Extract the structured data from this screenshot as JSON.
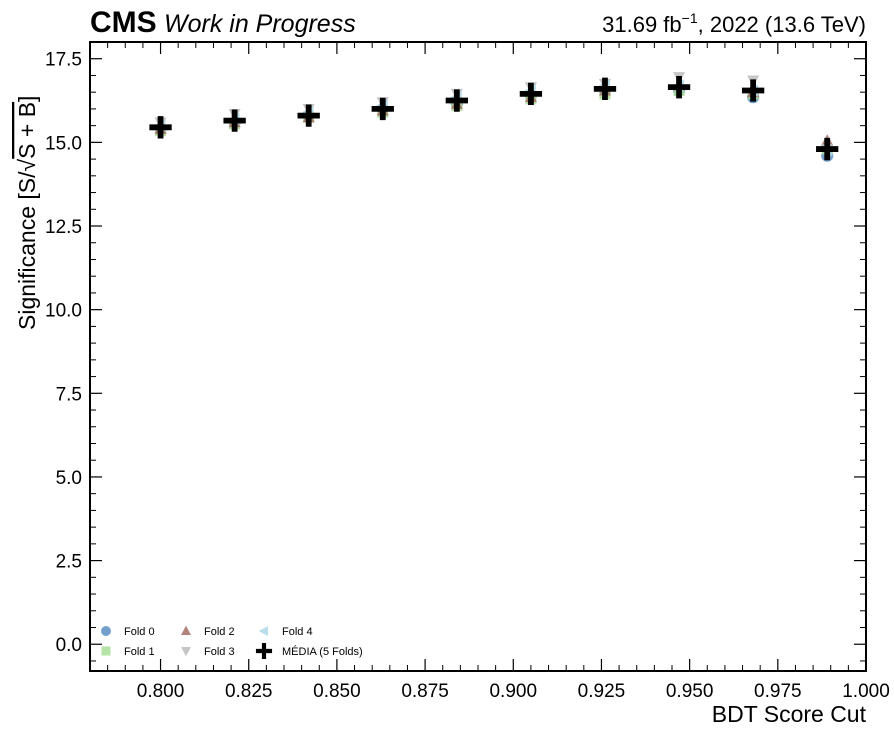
{
  "header": {
    "experiment": "CMS",
    "status": "Work in Progress",
    "lumi_value": "31.69 fb",
    "lumi_exp": "−1",
    "lumi_rest": ", 2022 (13.6 TeV)"
  },
  "chart_data": {
    "type": "scatter",
    "xlabel": "BDT Score Cut",
    "ylabel": "Significance [S/√(S + B)]",
    "ylabel_prefix": "Significance [S/√",
    "ylabel_radicand": "S + B",
    "ylabel_suffix": "]",
    "xlim": [
      0.78,
      1.0
    ],
    "ylim": [
      -0.8,
      18.0
    ],
    "xticks": [
      0.8,
      0.825,
      0.85,
      0.875,
      0.9,
      0.925,
      0.95,
      0.975,
      1.0
    ],
    "xtick_labels": [
      "0.800",
      "0.825",
      "0.850",
      "0.875",
      "0.900",
      "0.925",
      "0.950",
      "0.975",
      "1.000"
    ],
    "yticks": [
      0.0,
      2.5,
      5.0,
      7.5,
      10.0,
      12.5,
      15.0,
      17.5
    ],
    "ytick_labels": [
      "0.0",
      "2.5",
      "5.0",
      "7.5",
      "10.0",
      "12.5",
      "15.0",
      "17.5"
    ],
    "x": [
      0.8,
      0.821,
      0.842,
      0.863,
      0.884,
      0.905,
      0.926,
      0.947,
      0.968,
      0.989
    ],
    "series": [
      {
        "name": "Fold 0",
        "marker": "circle",
        "color": "#5b8fc2",
        "values": [
          15.4,
          15.6,
          15.8,
          16.0,
          16.15,
          16.4,
          16.55,
          16.55,
          16.35,
          14.6
        ]
      },
      {
        "name": "Fold 1",
        "marker": "square",
        "color": "#a8dd95",
        "values": [
          15.35,
          15.55,
          15.75,
          15.9,
          16.1,
          16.3,
          16.45,
          16.55,
          16.45,
          14.8
        ]
      },
      {
        "name": "Fold 2",
        "marker": "triangle-up",
        "color": "#a66e65",
        "values": [
          15.4,
          15.6,
          15.75,
          15.95,
          16.15,
          16.35,
          16.55,
          16.7,
          16.5,
          15.05
        ]
      },
      {
        "name": "Fold 3",
        "marker": "triangle-down",
        "color": "#bcbcbc",
        "values": [
          15.6,
          15.85,
          16.0,
          16.2,
          16.45,
          16.65,
          16.75,
          16.95,
          16.85,
          14.8
        ]
      },
      {
        "name": "Fold 4",
        "marker": "triangle-left",
        "color": "#aed7e8",
        "values": [
          15.5,
          15.7,
          15.9,
          16.1,
          16.35,
          16.55,
          16.7,
          16.7,
          16.55,
          14.75
        ]
      },
      {
        "name": "MÉDIA (5 Folds)",
        "marker": "plus",
        "color": "#000000",
        "values": [
          15.45,
          15.65,
          15.8,
          16.0,
          16.25,
          16.45,
          16.6,
          16.65,
          16.55,
          14.8
        ]
      }
    ],
    "legend_position": "bottom-left",
    "grid": false
  }
}
